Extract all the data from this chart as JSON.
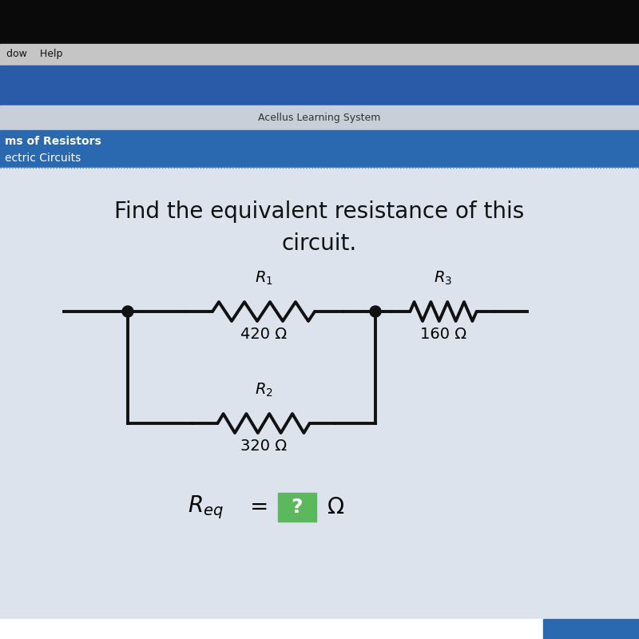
{
  "title_line1": "Find the equivalent resistance of this",
  "title_line2": "circuit.",
  "title_fontsize": 20,
  "header_text": "Acellus Learning System",
  "sub_header_text1": "ms of Resistors",
  "sub_header_text2": "ectric Circuits",
  "r1_value": "420 Ω",
  "r2_value": "320 Ω",
  "r3_value": "160 Ω",
  "green_box_color": "#5cb85c",
  "circuit_color": "#111111",
  "dot_color": "#111111",
  "line_width": 2.8,
  "black_bar_color": "#111111",
  "menubar_color": "#c8c8c8",
  "bluebar_color": "#3a6faa",
  "lightbar_color": "#d0d8e8",
  "subbluebar_color": "#2a5fa0",
  "content_bg": "#dde3ec",
  "white_panel_color": "#e8eaf0"
}
